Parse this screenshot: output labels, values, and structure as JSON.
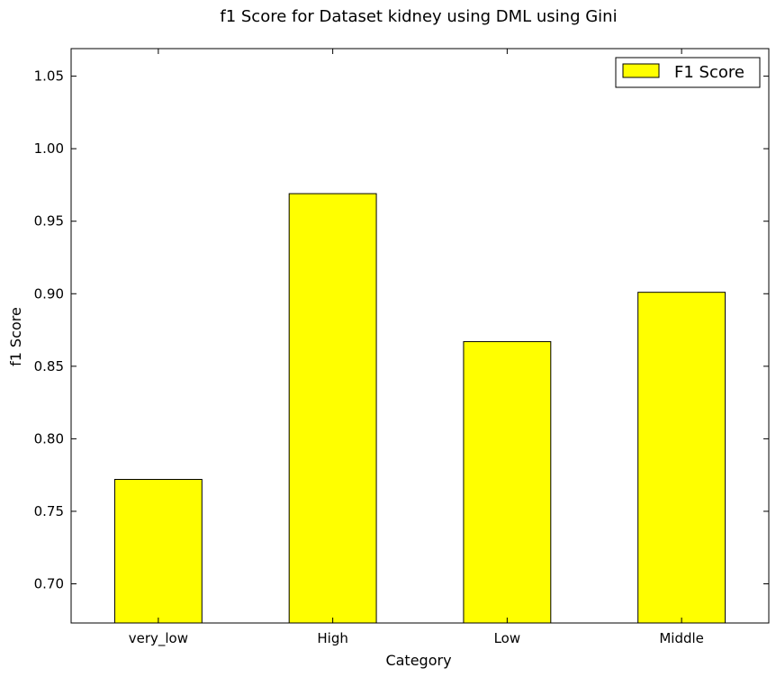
{
  "chart_data": {
    "type": "bar",
    "title": "f1 Score for Dataset kidney using DML using Gini",
    "xlabel": "Category",
    "ylabel": "f1 Score",
    "categories": [
      "very_low",
      "High",
      "Low",
      "Middle"
    ],
    "series": [
      {
        "name": "F1 Score",
        "values": [
          0.772,
          0.969,
          0.867,
          0.901
        ],
        "color": "#ffff00"
      }
    ],
    "ylim": [
      0.673,
      1.069
    ],
    "yticks": [
      0.7,
      0.75,
      0.8,
      0.85,
      0.9,
      0.95,
      1.0,
      1.05
    ],
    "ytick_labels": [
      "0.70",
      "0.75",
      "0.80",
      "0.85",
      "0.90",
      "0.95",
      "1.00",
      "1.05"
    ],
    "grid": false,
    "legend_position": "top-right"
  }
}
